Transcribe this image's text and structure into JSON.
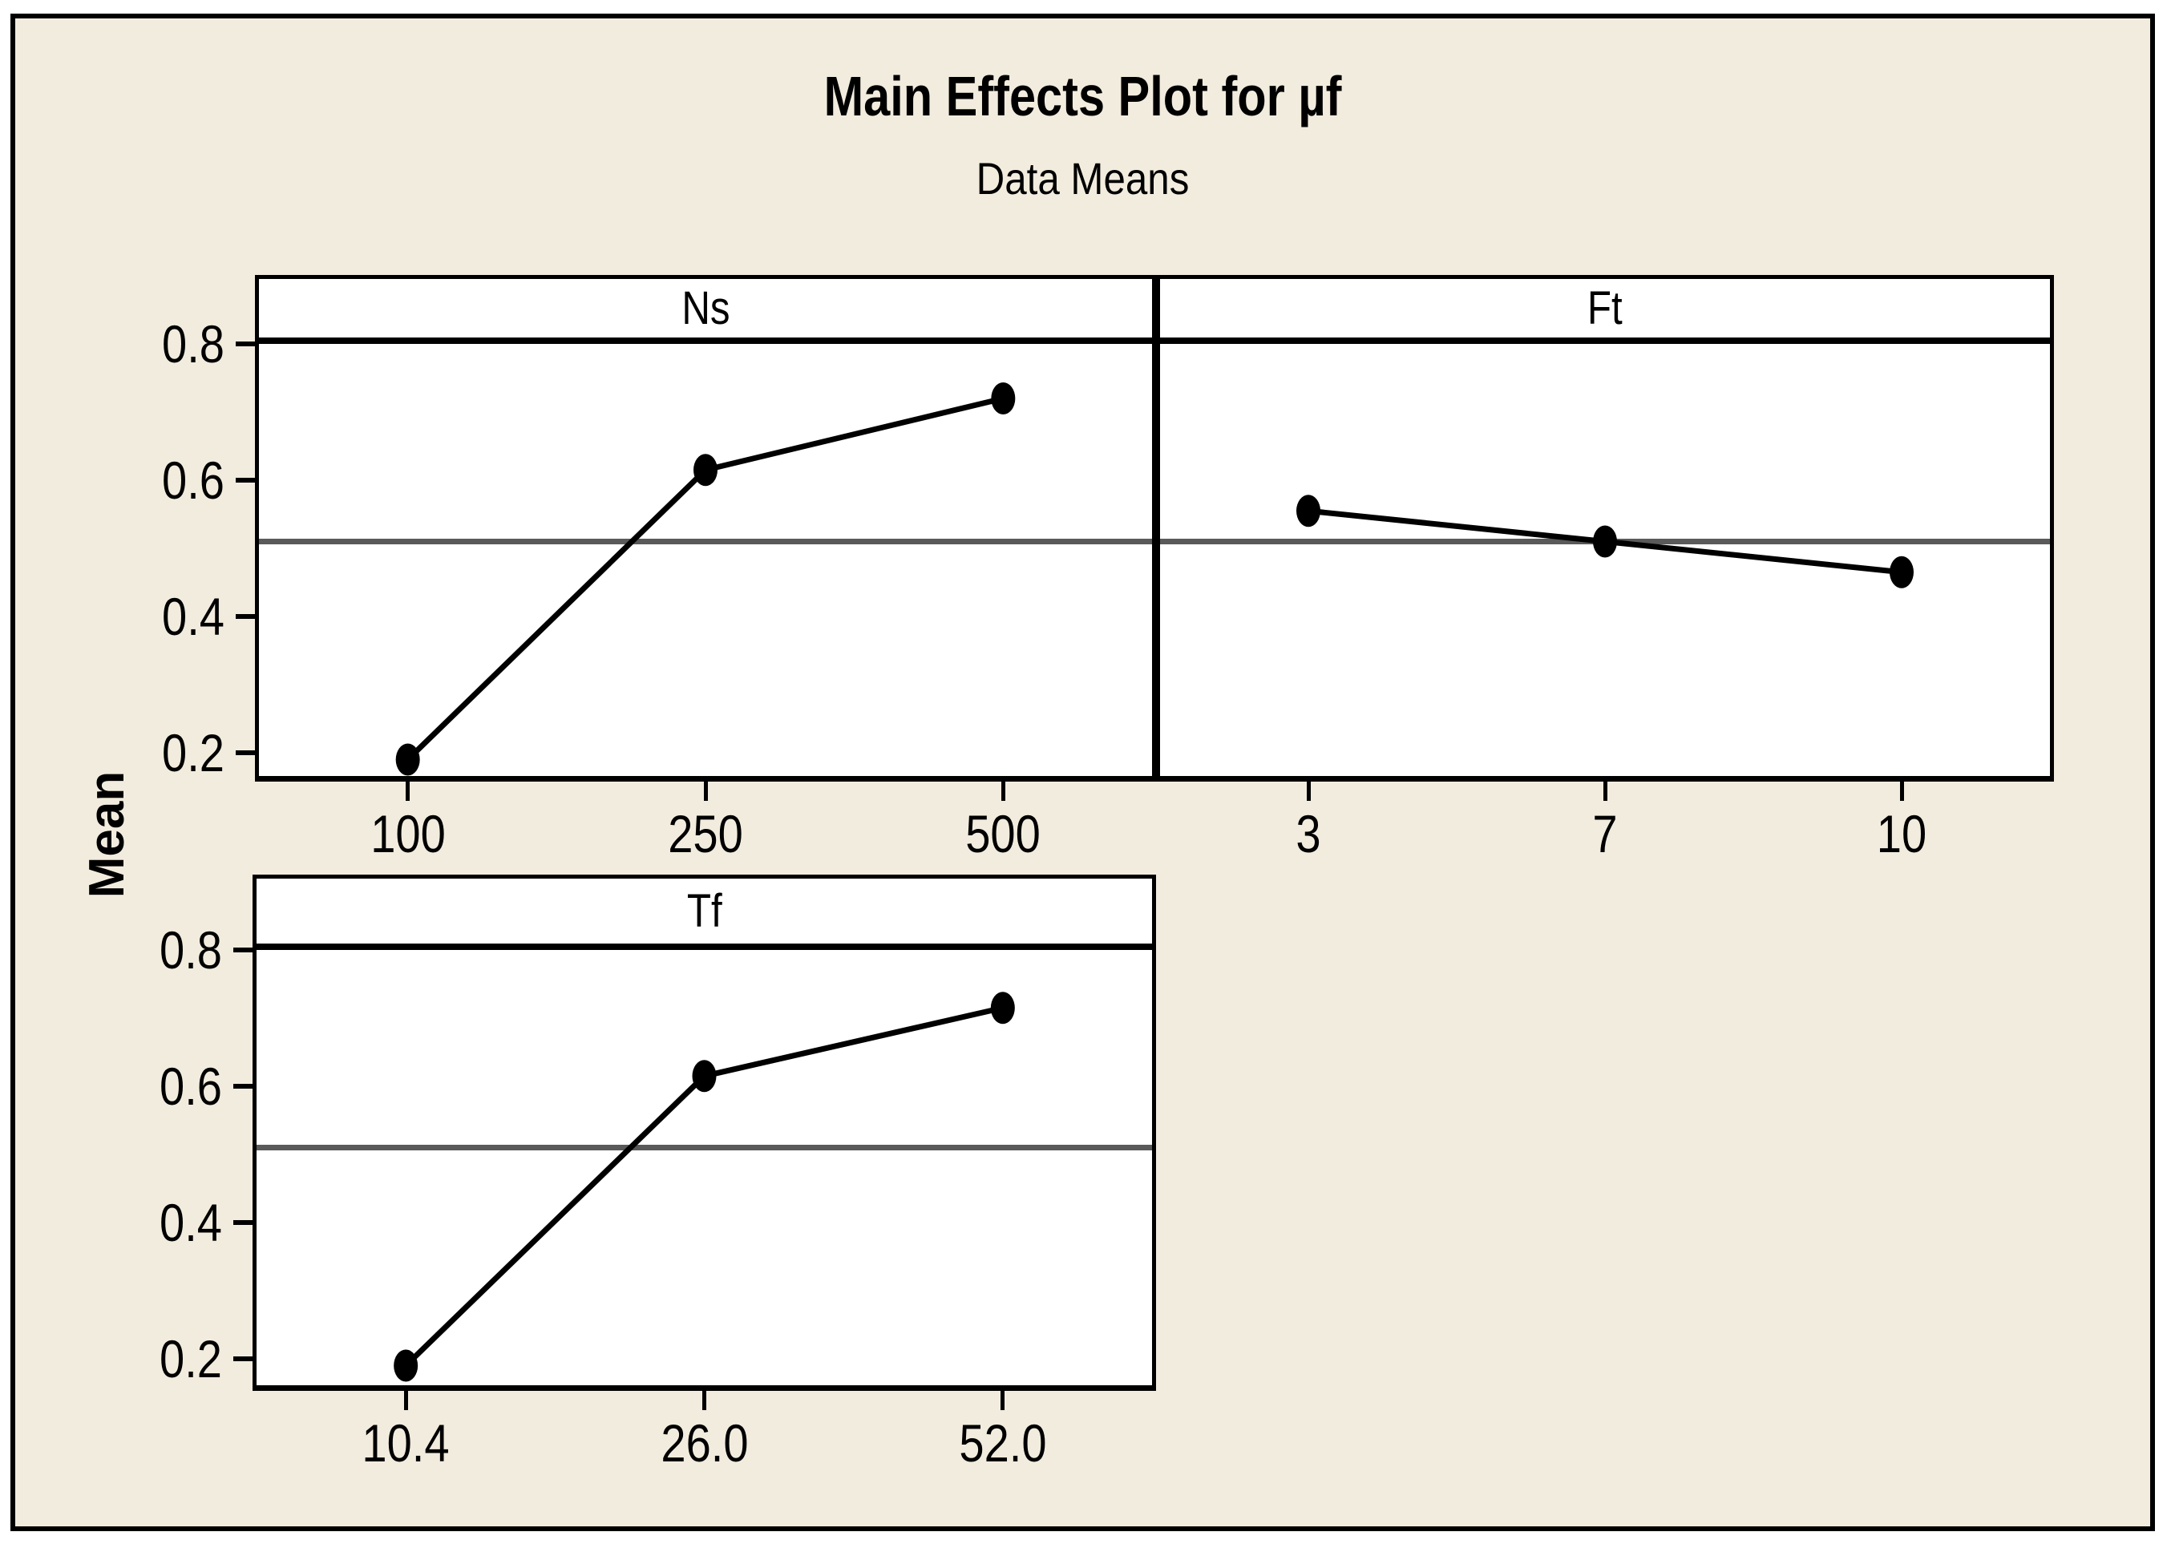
{
  "colors": {
    "background": "#F2ECDE",
    "panel_fill": "#FFFFFF",
    "axis": "#000000",
    "series": "#000000",
    "grand_mean_line": "#5A5A5A"
  },
  "chart_data": {
    "type": "line",
    "title": "Main Effects Plot for µf",
    "subtitle": "Data Means",
    "ylabel": "Mean",
    "ylim": [
      0.157,
      0.8
    ],
    "yticks": [
      0.8,
      0.6,
      0.4,
      0.2
    ],
    "ytick_labels": [
      "0.8",
      "0.6",
      "0.4",
      "0.2"
    ],
    "grand_mean": 0.51,
    "grid": false,
    "legend": "none",
    "marker": "filled-circle",
    "panels": [
      {
        "label": "Ns",
        "categories": [
          "100",
          "250",
          "500"
        ],
        "values": [
          0.19,
          0.615,
          0.72
        ]
      },
      {
        "label": "Ft",
        "categories": [
          "3",
          "7",
          "10"
        ],
        "values": [
          0.555,
          0.51,
          0.465
        ]
      },
      {
        "label": "Tf",
        "categories": [
          "10.4",
          "26.0",
          "52.0"
        ],
        "values": [
          0.19,
          0.615,
          0.715
        ]
      }
    ]
  }
}
